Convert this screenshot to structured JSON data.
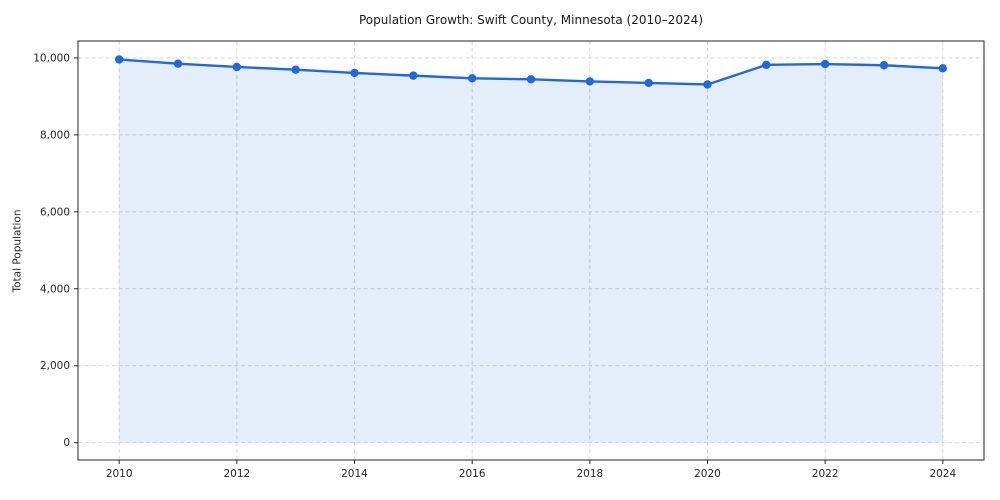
{
  "chart_data": {
    "type": "area",
    "title": "Population Growth: Swift County, Minnesota (2010–2024)",
    "xlabel": "",
    "ylabel": "Total Population",
    "x": [
      2010,
      2011,
      2012,
      2013,
      2014,
      2015,
      2016,
      2017,
      2018,
      2019,
      2020,
      2021,
      2022,
      2023,
      2024
    ],
    "series": [
      {
        "name": "Total Population",
        "values": [
          9960,
          9850,
          9765,
          9695,
          9610,
          9540,
          9470,
          9445,
          9390,
          9350,
          9310,
          9820,
          9840,
          9810,
          9730
        ]
      }
    ],
    "xlim": [
      2009.3,
      2024.7
    ],
    "ylim": [
      -450,
      10440
    ],
    "xticks": [
      2010,
      2012,
      2014,
      2016,
      2018,
      2020,
      2022,
      2024
    ],
    "xtick_labels": [
      "2010",
      "2012",
      "2014",
      "2016",
      "2018",
      "2020",
      "2022",
      "2024"
    ],
    "yticks": [
      0,
      2000,
      4000,
      6000,
      8000,
      10000
    ],
    "ytick_labels": [
      "0",
      "2,000",
      "4,000",
      "6,000",
      "8,000",
      "10,000"
    ],
    "grid": true,
    "grid_style": "dashed",
    "legend": "none",
    "baseline": 0,
    "colors": {
      "line": "#2368d8",
      "fill_opacity": 0.12,
      "grid": "#d4d7db",
      "axis": "#262626",
      "text": "#262626",
      "background": "#ffffff"
    }
  }
}
